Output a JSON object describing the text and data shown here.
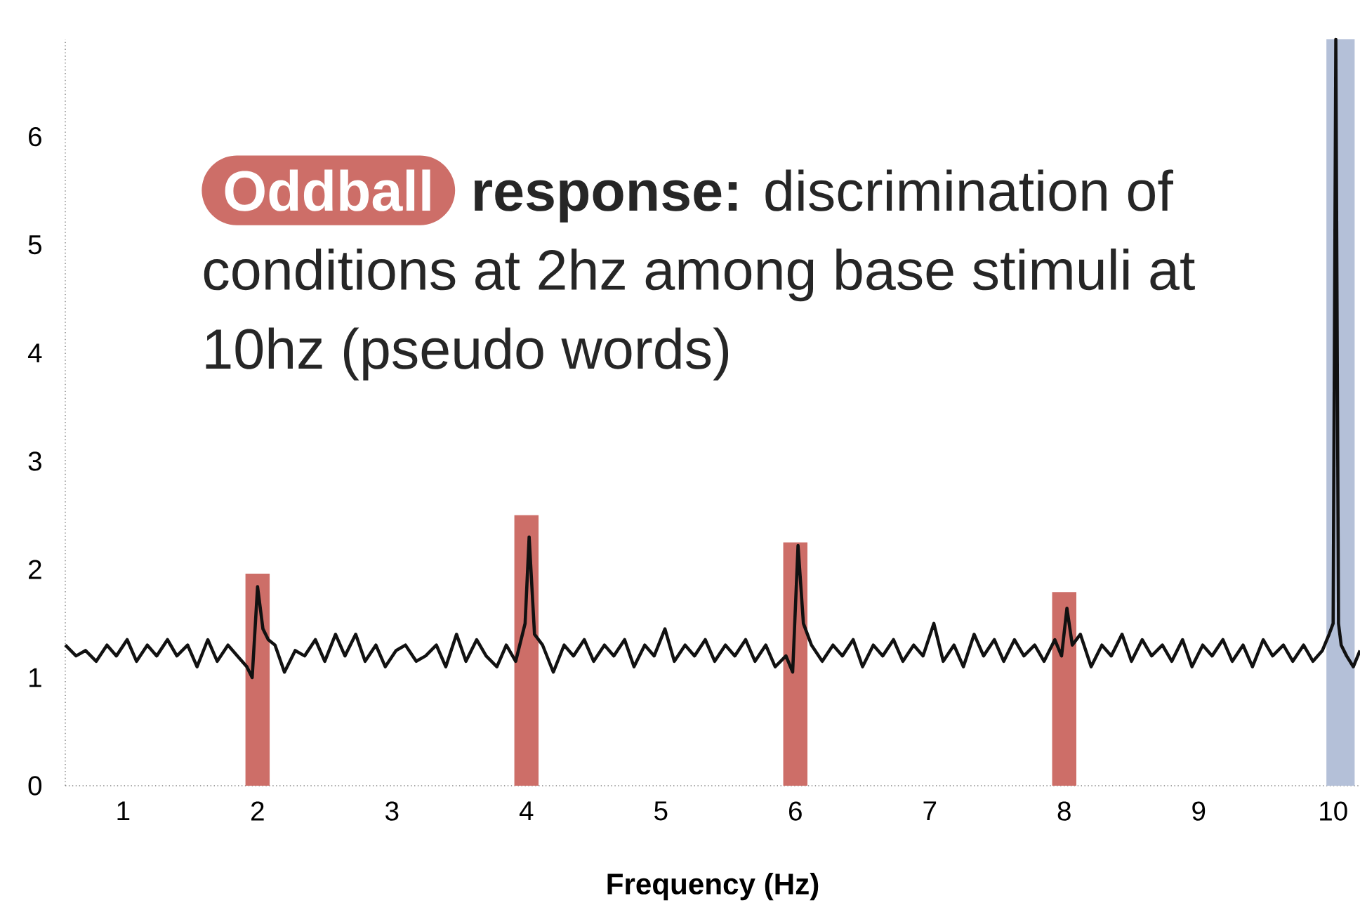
{
  "chart_data": {
    "type": "line",
    "title": "Oddball",
    "subtitle": "**response:** discrimination of conditions at 2hz  among base stimuli at 10hz (pseudo words)",
    "xlabel": "Frequency (Hz)",
    "xlim": [
      0.57,
      10.2
    ],
    "ylim": [
      0,
      6.9
    ],
    "xticks": [
      1,
      2,
      3,
      4,
      5,
      6,
      7,
      8,
      9,
      10
    ],
    "yticks": [
      0,
      1,
      2,
      3,
      4,
      5,
      6
    ],
    "bands": [
      {
        "axis": "x",
        "from": 9.95,
        "to": 10.16,
        "color": "#b4c0d8"
      }
    ],
    "series": [
      {
        "type": "bar",
        "color": "#cd6e68",
        "x": [
          2,
          4,
          6,
          8
        ],
        "values": [
          1.96,
          2.5,
          2.25,
          1.79
        ]
      },
      {
        "color": "#111111",
        "x": [
          0.57,
          0.65,
          0.72,
          0.8,
          0.88,
          0.95,
          1.03,
          1.1,
          1.18,
          1.25,
          1.33,
          1.4,
          1.48,
          1.55,
          1.63,
          1.7,
          1.78,
          1.85,
          1.92,
          1.96,
          2.0,
          2.04,
          2.08,
          2.13,
          2.2,
          2.28,
          2.35,
          2.43,
          2.5,
          2.58,
          2.65,
          2.73,
          2.8,
          2.88,
          2.95,
          3.03,
          3.1,
          3.18,
          3.25,
          3.33,
          3.4,
          3.48,
          3.55,
          3.63,
          3.7,
          3.78,
          3.85,
          3.92,
          3.96,
          3.99,
          4.02,
          4.06,
          4.12,
          4.2,
          4.28,
          4.35,
          4.43,
          4.5,
          4.58,
          4.65,
          4.73,
          4.8,
          4.88,
          4.95,
          5.03,
          5.1,
          5.18,
          5.25,
          5.33,
          5.4,
          5.48,
          5.55,
          5.63,
          5.7,
          5.78,
          5.85,
          5.93,
          5.98,
          6.02,
          6.06,
          6.12,
          6.2,
          6.28,
          6.35,
          6.43,
          6.5,
          6.58,
          6.65,
          6.73,
          6.8,
          6.88,
          6.95,
          7.03,
          7.1,
          7.18,
          7.25,
          7.33,
          7.4,
          7.48,
          7.55,
          7.63,
          7.7,
          7.78,
          7.85,
          7.93,
          7.98,
          8.02,
          8.06,
          8.12,
          8.2,
          8.28,
          8.35,
          8.43,
          8.5,
          8.58,
          8.65,
          8.73,
          8.8,
          8.88,
          8.95,
          9.03,
          9.1,
          9.18,
          9.25,
          9.33,
          9.4,
          9.48,
          9.55,
          9.63,
          9.7,
          9.78,
          9.85,
          9.92,
          9.97,
          10.0,
          10.02,
          10.04,
          10.06,
          10.1,
          10.15,
          10.2
        ],
        "values": [
          1.3,
          1.2,
          1.25,
          1.15,
          1.3,
          1.2,
          1.35,
          1.15,
          1.3,
          1.2,
          1.35,
          1.2,
          1.3,
          1.1,
          1.35,
          1.15,
          1.3,
          1.2,
          1.1,
          1.0,
          1.84,
          1.45,
          1.35,
          1.3,
          1.05,
          1.25,
          1.2,
          1.35,
          1.15,
          1.4,
          1.2,
          1.4,
          1.15,
          1.3,
          1.1,
          1.25,
          1.3,
          1.15,
          1.2,
          1.3,
          1.1,
          1.4,
          1.15,
          1.35,
          1.2,
          1.1,
          1.3,
          1.15,
          1.35,
          1.5,
          2.3,
          1.4,
          1.3,
          1.05,
          1.3,
          1.2,
          1.35,
          1.15,
          1.3,
          1.2,
          1.35,
          1.1,
          1.3,
          1.2,
          1.45,
          1.15,
          1.3,
          1.2,
          1.35,
          1.15,
          1.3,
          1.2,
          1.35,
          1.15,
          1.3,
          1.1,
          1.2,
          1.05,
          2.22,
          1.5,
          1.3,
          1.15,
          1.3,
          1.2,
          1.35,
          1.1,
          1.3,
          1.2,
          1.35,
          1.15,
          1.3,
          1.2,
          1.5,
          1.15,
          1.3,
          1.1,
          1.4,
          1.2,
          1.35,
          1.15,
          1.35,
          1.2,
          1.3,
          1.15,
          1.35,
          1.2,
          1.64,
          1.3,
          1.4,
          1.1,
          1.3,
          1.2,
          1.4,
          1.15,
          1.35,
          1.2,
          1.3,
          1.15,
          1.35,
          1.1,
          1.3,
          1.2,
          1.35,
          1.15,
          1.3,
          1.1,
          1.35,
          1.2,
          1.3,
          1.15,
          1.3,
          1.15,
          1.25,
          1.4,
          1.5,
          6.9,
          1.5,
          1.3,
          1.2,
          1.1,
          1.25
        ]
      }
    ]
  }
}
